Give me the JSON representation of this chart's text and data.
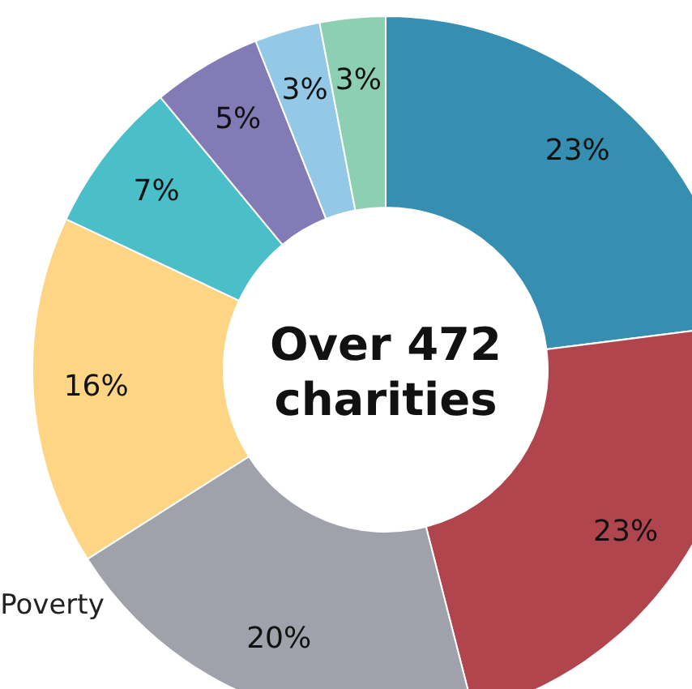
{
  "chart_data": {
    "type": "donut",
    "categories": [
      null,
      null,
      "Poverty",
      null,
      null,
      null,
      null,
      null
    ],
    "values": [
      23,
      23,
      20,
      16,
      7,
      5,
      3,
      3
    ],
    "value_labels": [
      "23%",
      "23%",
      "20%",
      "16%",
      "7%",
      "5%",
      "3%",
      "3%"
    ],
    "colors": [
      "#368fb0",
      "#b0454e",
      "#a0a2ab",
      "#fed584",
      "#4bbfc9",
      "#827bb5",
      "#93c9e6",
      "#8ccfb3"
    ],
    "annotations": [
      "Over 472 charities"
    ],
    "legend": false
  }
}
